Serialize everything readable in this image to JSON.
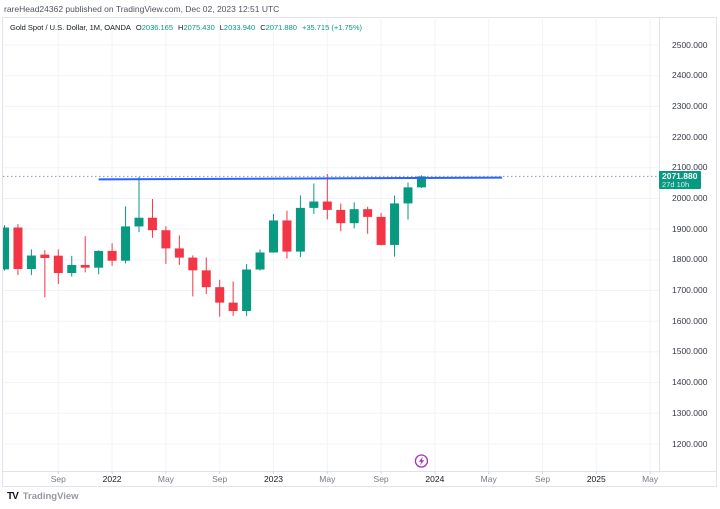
{
  "attribution": "rareHead24362 published on TradingView.com, Dec 02, 2023 12:51 UTC",
  "legend": {
    "symbol_title": "Gold Spot / U.S. Dollar, 1M, OANDA",
    "ohlc": [
      {
        "label": "O",
        "value": "2036.165"
      },
      {
        "label": "H",
        "value": "2075.430"
      },
      {
        "label": "L",
        "value": "2033.940"
      },
      {
        "label": "C",
        "value": "2071.880"
      }
    ],
    "change": "+35.715 (+1.75%)"
  },
  "price_scale": {
    "label_box": {
      "price": "2071.880",
      "countdown": "27d 10h"
    }
  },
  "footer": {
    "brand_mark": "TV",
    "brand": "TradingView"
  },
  "colors": {
    "up": "#089981",
    "down": "#f23645",
    "trend_line": "#2962ff",
    "price_line": "#8a98bf",
    "grid": "#f0f3fa",
    "tick_mark": "#d1d4dc",
    "marker_purple": "#ab2eb8",
    "label_box_bg": "#089981"
  },
  "chart_data": {
    "type": "candlestick",
    "symbol": "Gold Spot / U.S. Dollar",
    "interval": "1M",
    "exchange": "OANDA",
    "y_axis": {
      "min": 1200,
      "max": 2500,
      "step": 100,
      "side": "right",
      "grid": true
    },
    "x_axis": {
      "grid": true,
      "ticks": [
        {
          "month": "2021-09",
          "label": "Sep",
          "year": false
        },
        {
          "month": "2022-01",
          "label": "2022",
          "year": true
        },
        {
          "month": "2022-05",
          "label": "May",
          "year": false
        },
        {
          "month": "2022-09",
          "label": "Sep",
          "year": false
        },
        {
          "month": "2023-01",
          "label": "2023",
          "year": true
        },
        {
          "month": "2023-05",
          "label": "May",
          "year": false
        },
        {
          "month": "2023-09",
          "label": "Sep",
          "year": false
        },
        {
          "month": "2024-01",
          "label": "2024",
          "year": true
        },
        {
          "month": "2024-05",
          "label": "May",
          "year": false
        },
        {
          "month": "2024-09",
          "label": "Sep",
          "year": false
        },
        {
          "month": "2025-01",
          "label": "2025",
          "year": true
        },
        {
          "month": "2025-05",
          "label": "May",
          "year": false
        }
      ]
    },
    "price_line": {
      "price": 2071.88,
      "style": "dotted"
    },
    "trend_line": {
      "from": {
        "month": "2021-12",
        "price": 2062
      },
      "to": {
        "month": "2024-06",
        "price": 2068
      }
    },
    "event_marker": {
      "month": "2023-12",
      "icon": "lightning"
    },
    "candles": [
      {
        "t": "2021-05",
        "o": 1769.0,
        "h": 1912.9,
        "l": 1765.0,
        "c": 1905.3
      },
      {
        "t": "2021-06",
        "o": 1905.3,
        "h": 1916.5,
        "l": 1750.5,
        "c": 1770.1
      },
      {
        "t": "2021-07",
        "o": 1770.1,
        "h": 1834.1,
        "l": 1750.3,
        "c": 1814.1
      },
      {
        "t": "2021-08",
        "o": 1817.0,
        "h": 1831.5,
        "l": 1677.7,
        "c": 1806.0
      },
      {
        "t": "2021-09",
        "o": 1813.6,
        "h": 1834.0,
        "l": 1721.5,
        "c": 1757.0
      },
      {
        "t": "2021-10",
        "o": 1757.0,
        "h": 1813.0,
        "l": 1745.5,
        "c": 1783.3
      },
      {
        "t": "2021-11",
        "o": 1783.3,
        "h": 1877.1,
        "l": 1758.9,
        "c": 1774.5
      },
      {
        "t": "2021-12",
        "o": 1774.5,
        "h": 1830.9,
        "l": 1753.0,
        "c": 1829.1
      },
      {
        "t": "2022-01",
        "o": 1829.1,
        "h": 1853.9,
        "l": 1780.6,
        "c": 1797.1
      },
      {
        "t": "2022-02",
        "o": 1797.1,
        "h": 1974.4,
        "l": 1788.3,
        "c": 1908.9
      },
      {
        "t": "2022-03",
        "o": 1908.9,
        "h": 2070.5,
        "l": 1890.2,
        "c": 1937.2
      },
      {
        "t": "2022-04",
        "o": 1937.2,
        "h": 1998.3,
        "l": 1871.8,
        "c": 1896.5
      },
      {
        "t": "2022-05",
        "o": 1896.5,
        "h": 1909.8,
        "l": 1786.9,
        "c": 1837.3
      },
      {
        "t": "2022-06",
        "o": 1837.3,
        "h": 1879.5,
        "l": 1783.5,
        "c": 1807.3
      },
      {
        "t": "2022-07",
        "o": 1807.3,
        "h": 1814.6,
        "l": 1680.9,
        "c": 1765.8
      },
      {
        "t": "2022-08",
        "o": 1765.8,
        "h": 1807.9,
        "l": 1688.7,
        "c": 1711.0
      },
      {
        "t": "2022-09",
        "o": 1711.0,
        "h": 1735.0,
        "l": 1614.9,
        "c": 1660.6
      },
      {
        "t": "2022-10",
        "o": 1660.6,
        "h": 1729.5,
        "l": 1617.3,
        "c": 1633.3
      },
      {
        "t": "2022-11",
        "o": 1633.3,
        "h": 1786.5,
        "l": 1616.7,
        "c": 1768.5
      },
      {
        "t": "2022-12",
        "o": 1768.5,
        "h": 1833.3,
        "l": 1765.3,
        "c": 1824.0
      },
      {
        "t": "2023-01",
        "o": 1824.0,
        "h": 1949.2,
        "l": 1823.0,
        "c": 1928.4
      },
      {
        "t": "2023-02",
        "o": 1928.4,
        "h": 1959.8,
        "l": 1804.5,
        "c": 1826.9
      },
      {
        "t": "2023-03",
        "o": 1826.9,
        "h": 2009.7,
        "l": 1808.9,
        "c": 1969.3
      },
      {
        "t": "2023-04",
        "o": 1969.3,
        "h": 2048.7,
        "l": 1949.5,
        "c": 1990.0
      },
      {
        "t": "2023-05",
        "o": 1990.0,
        "h": 2079.8,
        "l": 1931.9,
        "c": 1962.7
      },
      {
        "t": "2023-06",
        "o": 1962.7,
        "h": 1983.5,
        "l": 1893.0,
        "c": 1919.4
      },
      {
        "t": "2023-07",
        "o": 1919.4,
        "h": 1987.5,
        "l": 1902.6,
        "c": 1965.1
      },
      {
        "t": "2023-08",
        "o": 1965.1,
        "h": 1972.9,
        "l": 1884.9,
        "c": 1940.0
      },
      {
        "t": "2023-09",
        "o": 1940.0,
        "h": 1953.2,
        "l": 1847.2,
        "c": 1848.6
      },
      {
        "t": "2023-10",
        "o": 1848.6,
        "h": 2009.4,
        "l": 1810.5,
        "c": 1983.9
      },
      {
        "t": "2023-11",
        "o": 1983.9,
        "h": 2052.1,
        "l": 1931.0,
        "c": 2036.2
      },
      {
        "t": "2023-12",
        "o": 2036.165,
        "h": 2075.43,
        "l": 2033.94,
        "c": 2071.88
      }
    ]
  }
}
